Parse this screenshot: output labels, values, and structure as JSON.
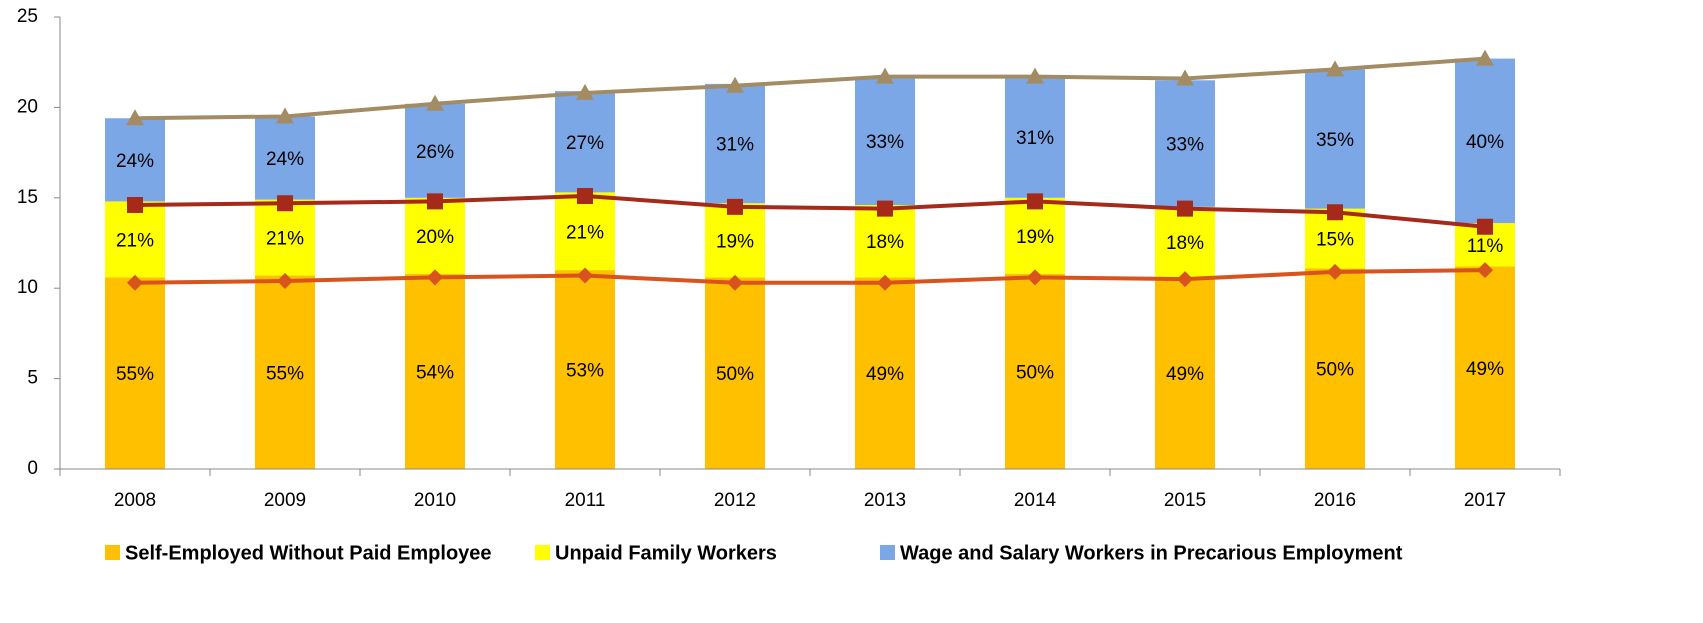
{
  "chart_data": {
    "type": "stacked_bar_line",
    "categories": [
      "2008",
      "2009",
      "2010",
      "2011",
      "2012",
      "2013",
      "2014",
      "2015",
      "2016",
      "2017"
    ],
    "series": [
      {
        "name": "Self-Employed Without Paid Employee",
        "color": "#ffc000",
        "values": [
          10.6,
          10.7,
          10.8,
          11.0,
          10.6,
          10.6,
          10.8,
          10.6,
          11.1,
          11.2
        ],
        "labels": [
          "55%",
          "55%",
          "54%",
          "53%",
          "50%",
          "49%",
          "50%",
          "49%",
          "50%",
          "49%"
        ]
      },
      {
        "name": "Unpaid Family Workers",
        "color": "#ffff00",
        "values": [
          4.2,
          4.2,
          4.2,
          4.3,
          4.1,
          4.0,
          4.2,
          3.9,
          3.3,
          2.4
        ],
        "labels": [
          "21%",
          "21%",
          "20%",
          "21%",
          "19%",
          "18%",
          "19%",
          "18%",
          "15%",
          "11%"
        ]
      },
      {
        "name": "Wage and Salary Workers in Precarious Employment",
        "color": "#7ba7e6",
        "values": [
          4.6,
          4.6,
          5.2,
          5.6,
          6.6,
          7.1,
          6.7,
          7.0,
          7.7,
          9.1
        ],
        "labels": [
          "24%",
          "24%",
          "26%",
          "27%",
          "31%",
          "33%",
          "31%",
          "33%",
          "35%",
          "40%"
        ]
      }
    ],
    "lines": [
      {
        "color": "#d9531e",
        "marker": "diamond",
        "values": [
          10.3,
          10.4,
          10.6,
          10.7,
          10.3,
          10.3,
          10.6,
          10.5,
          10.9,
          11.0
        ]
      },
      {
        "color": "#a52a1a",
        "marker": "square",
        "values": [
          14.6,
          14.7,
          14.8,
          15.1,
          14.5,
          14.4,
          14.8,
          14.4,
          14.2,
          13.4
        ]
      },
      {
        "color": "#a38c64",
        "marker": "triangle",
        "values": [
          19.4,
          19.5,
          20.2,
          20.8,
          21.2,
          21.7,
          21.7,
          21.6,
          22.1,
          22.7
        ]
      }
    ],
    "ylim": [
      0,
      25
    ],
    "yticks": [
      0,
      5,
      10,
      15,
      20,
      25
    ],
    "grid": false,
    "legend": "bottom"
  }
}
